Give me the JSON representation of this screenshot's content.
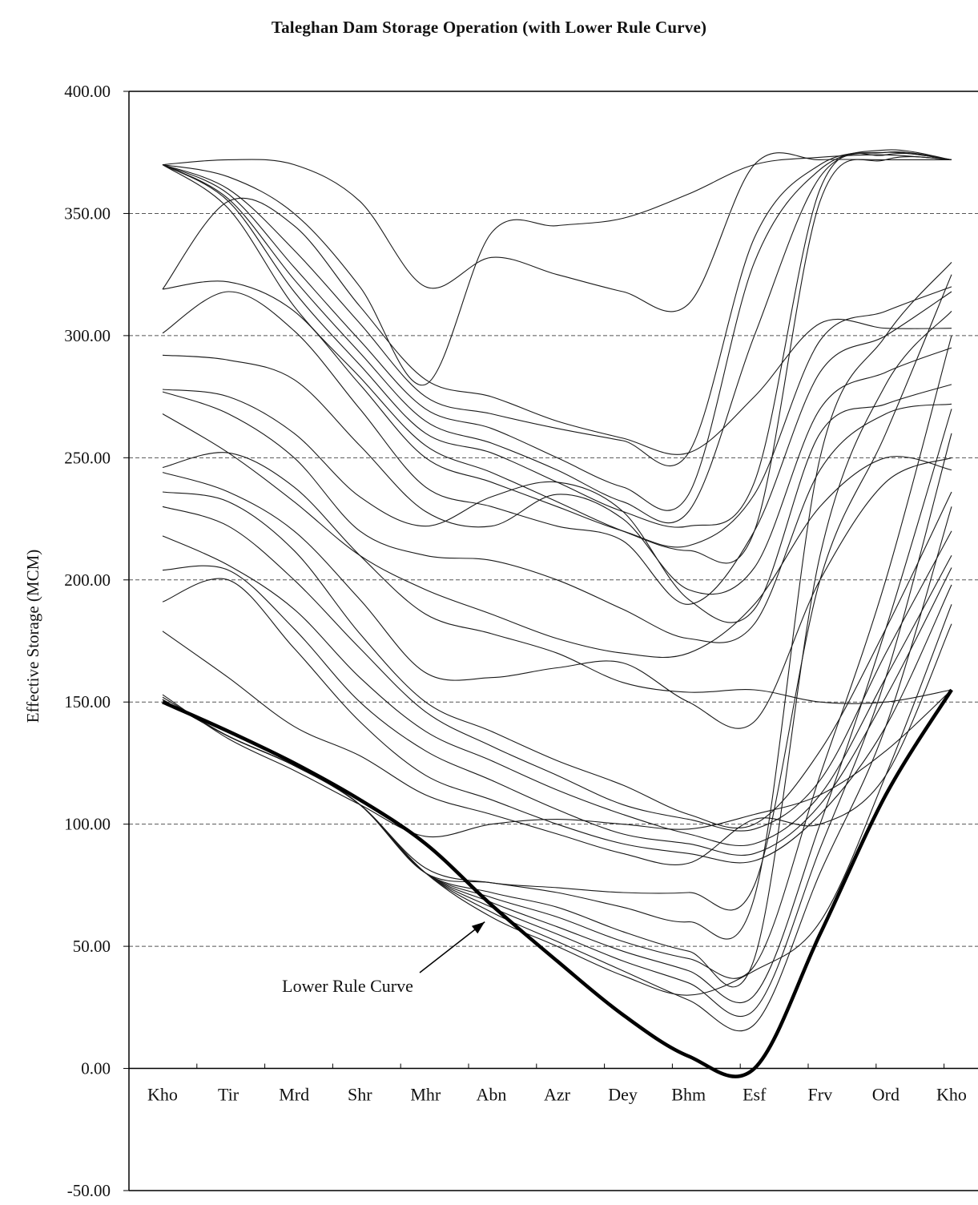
{
  "chart_data": {
    "type": "line",
    "title": "Taleghan Dam Storage Operation  (with Lower Rule Curve)",
    "ylabel": "Effective Storage (MCM)",
    "xlabel": "",
    "categories": [
      "Kho",
      "Tir",
      "Mrd",
      "Shr",
      "Mhr",
      "Abn",
      "Azr",
      "Dey",
      "Bhm",
      "Esf",
      "Frv",
      "Ord",
      "Kho"
    ],
    "ylim": [
      -50,
      400
    ],
    "yticks": [
      "400.00",
      "350.00",
      "300.00",
      "250.00",
      "200.00",
      "150.00",
      "100.00",
      "50.00",
      "0.00",
      "-50.00"
    ],
    "ytick_values": [
      400,
      350,
      300,
      250,
      200,
      150,
      100,
      50,
      0,
      -50
    ],
    "grid": "horizontal dashed",
    "lower_rule_curve": {
      "name": "Lower Rule Curve",
      "values": [
        150,
        138,
        125,
        110,
        92,
        67,
        44,
        22,
        5,
        0,
        55,
        112,
        155
      ]
    },
    "series": [
      {
        "values": [
          370,
          372,
          370,
          355,
          320,
          332,
          325,
          318,
          313,
          370,
          372,
          372,
          372
        ]
      },
      {
        "values": [
          370,
          365,
          350,
          320,
          280,
          342,
          345,
          348,
          358,
          370,
          373,
          374,
          372
        ]
      },
      {
        "values": [
          370,
          360,
          335,
          305,
          275,
          268,
          262,
          257,
          252,
          340,
          370,
          375,
          372
        ]
      },
      {
        "values": [
          370,
          358,
          328,
          298,
          270,
          262,
          250,
          238,
          235,
          330,
          368,
          376,
          372
        ]
      },
      {
        "values": [
          370,
          356,
          323,
          293,
          265,
          256,
          245,
          232,
          228,
          300,
          365,
          375,
          372
        ]
      },
      {
        "values": [
          370,
          355,
          318,
          288,
          260,
          252,
          240,
          228,
          222,
          240,
          360,
          374,
          372
        ]
      },
      {
        "values": [
          370,
          352,
          312,
          283,
          255,
          244,
          232,
          220,
          212,
          220,
          355,
          372,
          372
        ]
      },
      {
        "values": [
          319,
          355,
          345,
          312,
          282,
          275,
          265,
          258,
          252,
          275,
          305,
          303,
          303
        ]
      },
      {
        "values": [
          319,
          322,
          310,
          280,
          250,
          240,
          230,
          220,
          214,
          235,
          298,
          310,
          320
        ]
      },
      {
        "values": [
          301,
          318,
          302,
          270,
          238,
          230,
          222,
          216,
          190,
          220,
          285,
          300,
          318
        ]
      },
      {
        "values": [
          292,
          290,
          282,
          255,
          228,
          222,
          235,
          225,
          196,
          205,
          270,
          285,
          295
        ]
      },
      {
        "values": [
          278,
          275,
          260,
          234,
          222,
          234,
          240,
          228,
          192,
          188,
          260,
          272,
          280
        ]
      },
      {
        "values": [
          277,
          268,
          250,
          220,
          210,
          208,
          200,
          188,
          176,
          182,
          245,
          268,
          272
        ]
      },
      {
        "values": [
          268,
          252,
          232,
          210,
          196,
          186,
          176,
          170,
          170,
          190,
          230,
          250,
          245
        ]
      },
      {
        "values": [
          246,
          252,
          238,
          210,
          186,
          178,
          170,
          158,
          154,
          155,
          150,
          150,
          155
        ]
      },
      {
        "values": [
          244,
          236,
          220,
          192,
          162,
          160,
          164,
          166,
          150,
          142,
          200,
          240,
          250
        ]
      },
      {
        "values": [
          236,
          232,
          212,
          178,
          150,
          138,
          126,
          116,
          104,
          100,
          130,
          180,
          236
        ]
      },
      {
        "values": [
          230,
          222,
          200,
          172,
          146,
          132,
          120,
          108,
          102,
          98,
          118,
          170,
          220
        ]
      },
      {
        "values": [
          218,
          206,
          188,
          160,
          138,
          126,
          114,
          104,
          96,
          92,
          112,
          160,
          210
        ]
      },
      {
        "values": [
          204,
          204,
          180,
          150,
          130,
          118,
          106,
          96,
          92,
          88,
          108,
          152,
          205
        ]
      },
      {
        "values": [
          191,
          200,
          172,
          142,
          120,
          110,
          100,
          92,
          88,
          85,
          104,
          140,
          198
        ]
      },
      {
        "values": [
          179,
          160,
          140,
          128,
          112,
          104,
          96,
          88,
          84,
          102,
          100,
          120,
          182
        ]
      },
      {
        "values": [
          153,
          135,
          122,
          108,
          95,
          100,
          102,
          100,
          98,
          104,
          112,
          130,
          155
        ]
      },
      {
        "values": [
          152,
          136,
          124,
          108,
          82,
          76,
          74,
          72,
          72,
          75,
          200,
          260,
          325
        ]
      },
      {
        "values": [
          151,
          136,
          124,
          108,
          80,
          76,
          72,
          66,
          60,
          70,
          250,
          300,
          330
        ]
      },
      {
        "values": [
          151,
          136,
          124,
          108,
          80,
          72,
          66,
          56,
          48,
          45,
          210,
          280,
          310
        ]
      },
      {
        "values": [
          151,
          136,
          124,
          108,
          80,
          70,
          62,
          52,
          45,
          42,
          120,
          200,
          300
        ]
      },
      {
        "values": [
          151,
          136,
          124,
          108,
          80,
          68,
          58,
          48,
          40,
          30,
          100,
          180,
          270
        ]
      },
      {
        "values": [
          151,
          136,
          124,
          108,
          80,
          66,
          55,
          44,
          35,
          24,
          90,
          160,
          260
        ]
      },
      {
        "values": [
          151,
          136,
          124,
          108,
          80,
          64,
          52,
          40,
          28,
          18,
          80,
          140,
          230
        ]
      },
      {
        "values": [
          151,
          136,
          124,
          108,
          80,
          62,
          50,
          38,
          30,
          40,
          60,
          120,
          190
        ]
      }
    ],
    "annotations": [
      {
        "text": "Lower Rule Curve",
        "arrow_to": {
          "category_index": 4.9,
          "value": 60
        }
      }
    ]
  }
}
